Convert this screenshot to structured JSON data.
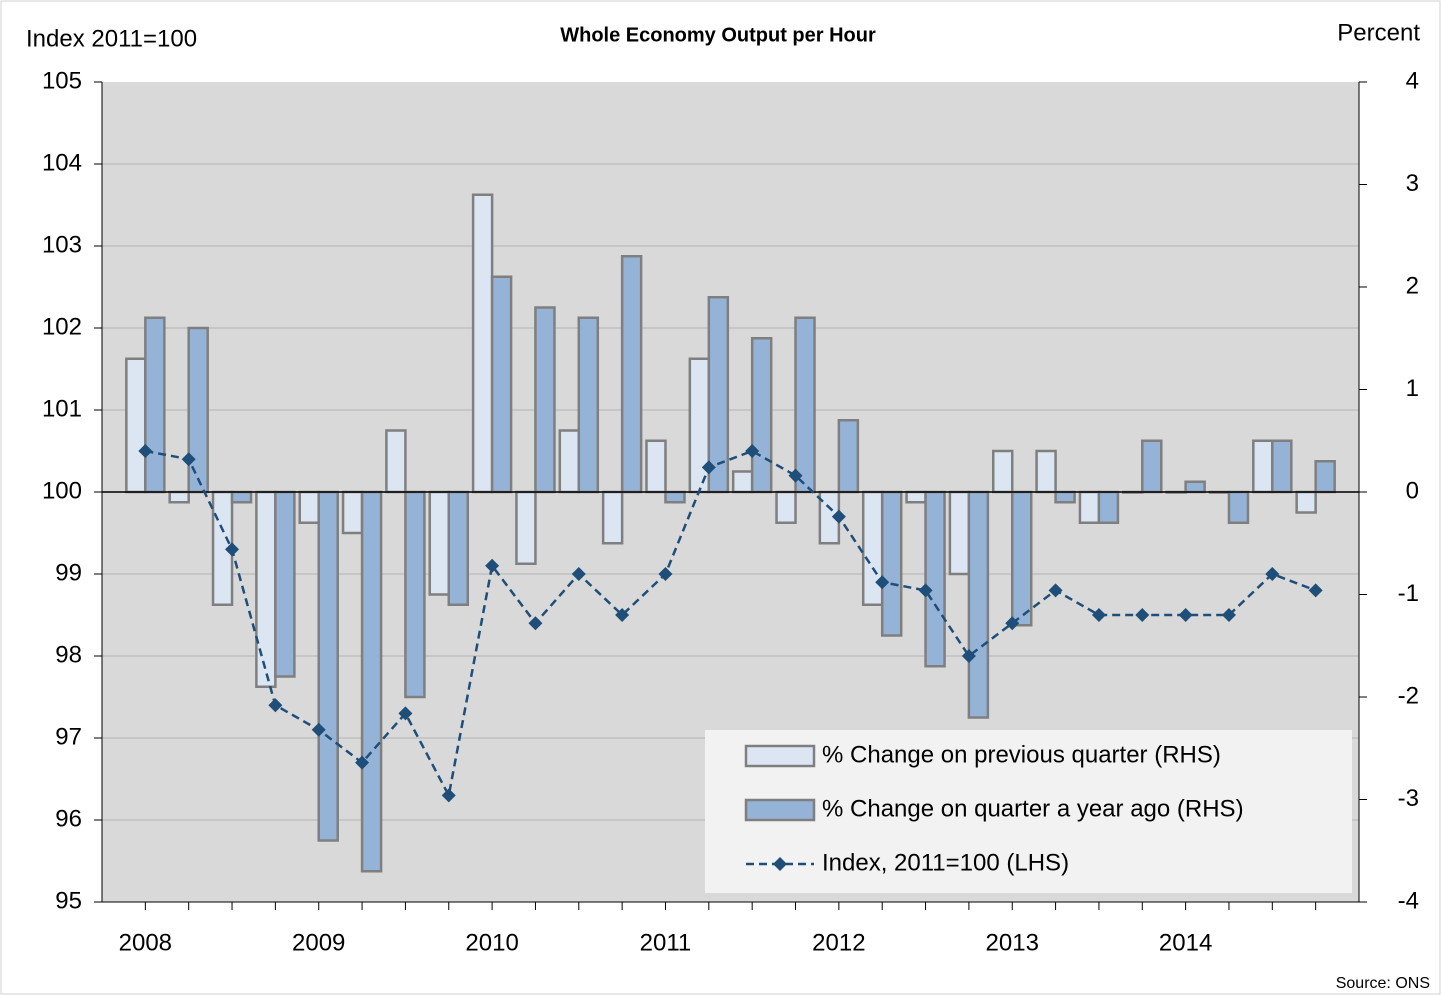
{
  "chart_data": {
    "type": "bar_line",
    "title": "Whole Economy  Output per Hour",
    "ylabel": "Index 2011=100",
    "y2label": "Percent",
    "source": "Source: ONS",
    "categories": [
      "2008",
      null,
      null,
      null,
      "2009",
      null,
      null,
      null,
      "2010",
      null,
      null,
      null,
      "2011",
      null,
      null,
      null,
      "2012",
      null,
      null,
      null,
      "2013",
      null,
      null,
      null,
      "2014",
      null,
      null,
      null
    ],
    "series": [
      {
        "name": "% Change on previous quarter (RHS)",
        "type": "bar",
        "axis": "y2",
        "color": "#dce6f2",
        "values": [
          1.3,
          -0.1,
          -1.1,
          -1.9,
          -0.3,
          -0.4,
          0.6,
          -1.0,
          2.9,
          -0.7,
          0.6,
          -0.5,
          0.5,
          1.3,
          0.2,
          -0.3,
          -0.5,
          -1.1,
          -0.1,
          -0.8,
          0.4,
          0.4,
          -0.3,
          0.0,
          0.0,
          0.0,
          0.5,
          -0.2
        ]
      },
      {
        "name": "% Change on quarter a year ago (RHS)",
        "type": "bar",
        "axis": "y2",
        "color": "#95b3d7",
        "values": [
          1.7,
          1.6,
          -0.1,
          -1.8,
          -3.4,
          -3.7,
          -2.0,
          -1.1,
          2.1,
          1.8,
          1.7,
          2.3,
          -0.1,
          1.9,
          1.5,
          1.7,
          0.7,
          -1.4,
          -1.7,
          -2.2,
          -1.3,
          -0.1,
          -0.3,
          0.5,
          0.1,
          -0.3,
          0.5,
          0.3
        ]
      },
      {
        "name": "Index, 2011=100 (LHS)",
        "type": "line",
        "axis": "y",
        "color": "#1f4e79",
        "values": [
          100.5,
          100.4,
          99.3,
          97.4,
          97.1,
          96.7,
          97.3,
          96.3,
          99.1,
          98.4,
          99.0,
          98.5,
          99.0,
          100.3,
          100.5,
          100.2,
          99.7,
          98.9,
          98.8,
          98.0,
          98.4,
          98.8,
          98.5,
          98.5,
          98.5,
          98.5,
          99.0,
          98.8
        ]
      }
    ],
    "ylim": [
      95,
      105
    ],
    "yticks": [
      95,
      96,
      97,
      98,
      99,
      100,
      101,
      102,
      103,
      104,
      105
    ],
    "y2lim": [
      -4,
      4
    ],
    "y2ticks": [
      -4,
      -3,
      -2,
      -1,
      0,
      1,
      2,
      3,
      4
    ],
    "grid": true
  }
}
